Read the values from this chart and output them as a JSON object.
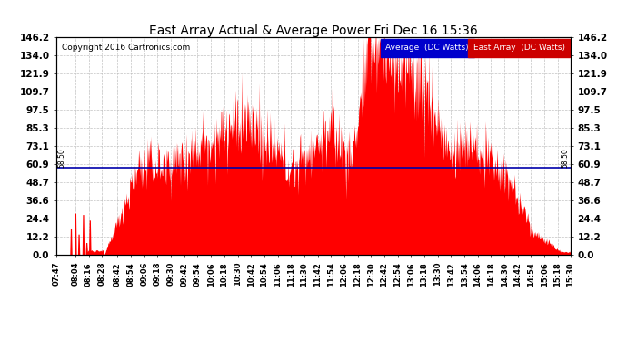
{
  "title": "East Array Actual & Average Power Fri Dec 16 15:36",
  "copyright": "Copyright 2016 Cartronics.com",
  "yticks": [
    0.0,
    12.2,
    24.4,
    36.6,
    48.7,
    60.9,
    73.1,
    85.3,
    97.5,
    109.7,
    121.9,
    134.0,
    146.2
  ],
  "ylim": [
    0.0,
    146.2
  ],
  "average_value": 58.5,
  "fill_color": "#FF0000",
  "avg_line_color": "#0000AA",
  "background_color": "#FFFFFF",
  "plot_bg_color": "#FFFFFF",
  "grid_color": "#AAAAAA",
  "title_fontsize": 11,
  "legend_avg_label": "Average  (DC Watts)",
  "legend_east_label": "East Array  (DC Watts)",
  "legend_avg_bg": "#0000CC",
  "legend_east_bg": "#CC0000",
  "xtick_labels": [
    "07:47",
    "08:04",
    "08:16",
    "08:28",
    "08:42",
    "08:54",
    "09:06",
    "09:18",
    "09:30",
    "09:42",
    "09:54",
    "10:06",
    "10:18",
    "10:30",
    "10:42",
    "10:54",
    "11:06",
    "11:18",
    "11:30",
    "11:42",
    "11:54",
    "12:06",
    "12:18",
    "12:30",
    "12:42",
    "12:54",
    "13:06",
    "13:18",
    "13:30",
    "13:42",
    "13:54",
    "14:06",
    "14:18",
    "14:30",
    "14:42",
    "14:54",
    "15:06",
    "15:18",
    "15:30"
  ]
}
